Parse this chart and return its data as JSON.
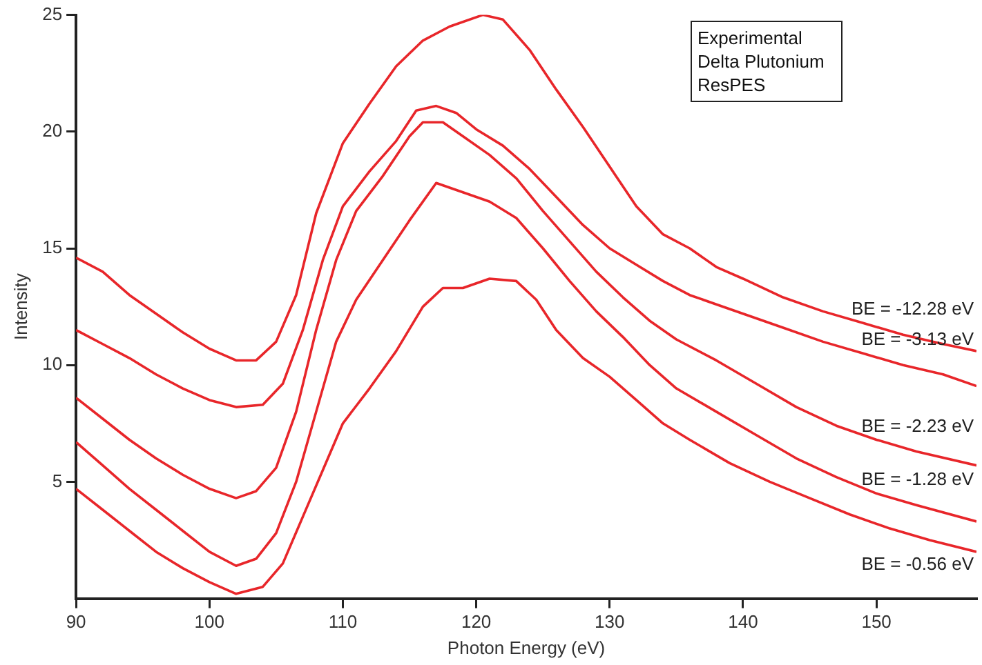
{
  "chart_data": {
    "type": "line",
    "xlabel": "Photon Energy (eV)",
    "ylabel": "Intensity",
    "annotations": [
      "Experimental",
      "Delta Plutonium",
      "ResPES"
    ],
    "xlim": [
      90,
      157.5
    ],
    "xticks": [
      90,
      100,
      110,
      120,
      130,
      140,
      150
    ],
    "ylim": [
      0,
      25
    ],
    "yticks": [
      5,
      10,
      15,
      20,
      25
    ],
    "marker": "none",
    "line_style": "solid",
    "series": [
      {
        "name": "BE = -12.28 eV",
        "color": "#e8262a",
        "x": [
          90,
          92,
          94,
          96,
          98,
          100,
          102,
          103.5,
          105,
          106.5,
          108,
          110,
          112,
          114,
          116,
          118,
          120.5,
          122,
          124,
          126,
          128,
          130,
          132,
          134,
          136,
          138,
          140,
          143,
          146,
          149,
          152,
          155,
          157.5
        ],
        "values": [
          14.6,
          14.0,
          13.0,
          12.2,
          11.4,
          10.7,
          10.2,
          10.2,
          11.0,
          13.0,
          16.5,
          19.5,
          21.2,
          22.8,
          23.9,
          24.5,
          25.0,
          24.8,
          23.5,
          21.8,
          20.2,
          18.5,
          16.8,
          15.6,
          15.0,
          14.2,
          13.7,
          12.9,
          12.3,
          11.8,
          11.3,
          10.9,
          10.6
        ]
      },
      {
        "name": "BE = -3.13 eV",
        "color": "#e8262a",
        "x": [
          90,
          92,
          94,
          96,
          98,
          100,
          102,
          104,
          105.5,
          107,
          108.5,
          110,
          112,
          114,
          115.5,
          117,
          118.5,
          120,
          122,
          124,
          126,
          128,
          130,
          132,
          134,
          136,
          138,
          140,
          143,
          146,
          149,
          152,
          155,
          157.5
        ],
        "values": [
          11.5,
          10.9,
          10.3,
          9.6,
          9.0,
          8.5,
          8.2,
          8.3,
          9.2,
          11.5,
          14.5,
          16.8,
          18.3,
          19.6,
          20.9,
          21.1,
          20.8,
          20.1,
          19.4,
          18.4,
          17.2,
          16.0,
          15.0,
          14.3,
          13.6,
          13.0,
          12.6,
          12.2,
          11.6,
          11.0,
          10.5,
          10.0,
          9.6,
          9.1
        ]
      },
      {
        "name": "BE = -2.23 eV",
        "color": "#e8262a",
        "x": [
          90,
          92,
          94,
          96,
          98,
          100,
          102,
          103.5,
          105,
          106.5,
          108,
          109.5,
          111,
          113,
          115,
          116,
          117.5,
          119,
          121,
          123,
          125,
          127,
          129,
          131,
          133,
          135,
          138,
          141,
          144,
          147,
          150,
          153,
          157.5
        ],
        "values": [
          8.6,
          7.7,
          6.8,
          6.0,
          5.3,
          4.7,
          4.3,
          4.6,
          5.6,
          8.0,
          11.5,
          14.5,
          16.6,
          18.1,
          19.8,
          20.4,
          20.4,
          19.8,
          19.0,
          18.0,
          16.6,
          15.3,
          14.0,
          12.9,
          11.9,
          11.1,
          10.2,
          9.2,
          8.2,
          7.4,
          6.8,
          6.3,
          5.7
        ]
      },
      {
        "name": "BE = -1.28 eV",
        "color": "#e8262a",
        "x": [
          90,
          92,
          94,
          96,
          98,
          100,
          102,
          103.5,
          105,
          106.5,
          108,
          109.5,
          111,
          113,
          115,
          117,
          119,
          121,
          123,
          125,
          127,
          129,
          131,
          133,
          135,
          138,
          141,
          144,
          147,
          150,
          153,
          157.5
        ],
        "values": [
          6.7,
          5.7,
          4.7,
          3.8,
          2.9,
          2.0,
          1.4,
          1.7,
          2.8,
          5.0,
          8.0,
          11.0,
          12.8,
          14.5,
          16.2,
          17.8,
          17.4,
          17.0,
          16.3,
          15.0,
          13.6,
          12.3,
          11.2,
          10.0,
          9.0,
          8.0,
          7.0,
          6.0,
          5.2,
          4.5,
          4.0,
          3.3
        ]
      },
      {
        "name": "BE = -0.56 eV",
        "color": "#e8262a",
        "x": [
          90,
          92,
          94,
          96,
          98,
          100,
          102,
          104,
          105.5,
          107,
          108.5,
          110,
          112,
          114,
          116,
          117.5,
          119,
          121,
          123,
          124.5,
          126,
          128,
          130,
          132,
          134,
          136,
          139,
          142,
          145,
          148,
          151,
          154,
          157.5
        ],
        "values": [
          4.7,
          3.8,
          2.9,
          2.0,
          1.3,
          0.7,
          0.2,
          0.5,
          1.5,
          3.5,
          5.5,
          7.5,
          9.0,
          10.6,
          12.5,
          13.3,
          13.3,
          13.7,
          13.6,
          12.8,
          11.5,
          10.3,
          9.5,
          8.5,
          7.5,
          6.8,
          5.8,
          5.0,
          4.3,
          3.6,
          3.0,
          2.5,
          2.0
        ]
      }
    ]
  }
}
